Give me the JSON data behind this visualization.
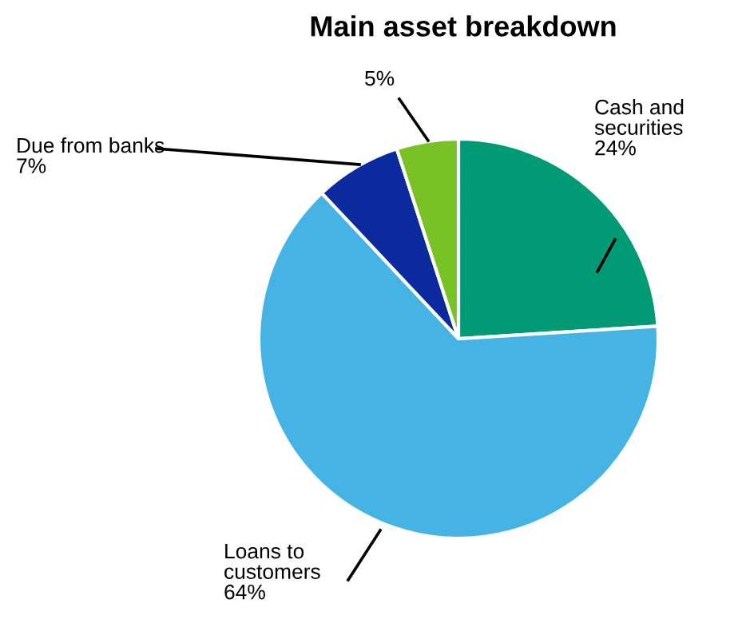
{
  "chart_data": {
    "type": "pie",
    "title": "Main asset breakdown",
    "categories": [
      "Cash and\nsecurities",
      "Loans to\ncustomers",
      "Due from banks",
      null
    ],
    "values": [
      24,
      64,
      7,
      5
    ],
    "value_labels": [
      "24%",
      "64%",
      "7%",
      "5%"
    ],
    "colors": [
      "#009a74",
      "#45b4e5",
      "#0a2a9e",
      "#79c226"
    ],
    "legend": false
  }
}
